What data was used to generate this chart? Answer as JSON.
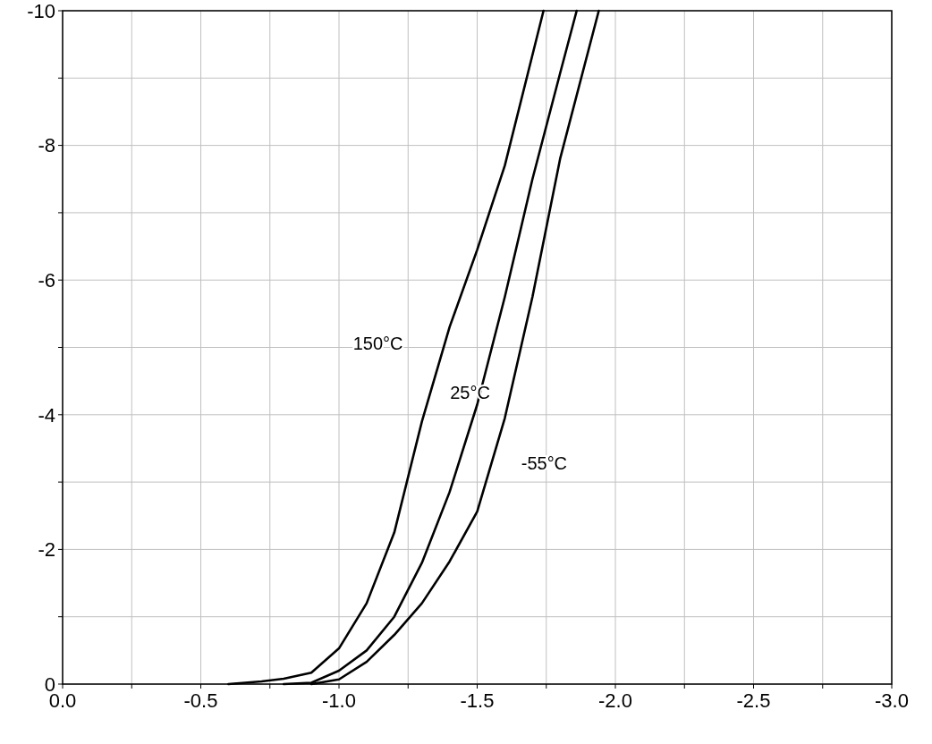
{
  "chart_data": {
    "type": "line",
    "xlim": [
      0,
      -3
    ],
    "ylim": [
      0,
      -10
    ],
    "xticks": [
      {
        "value": 0,
        "label": "0.0"
      },
      {
        "value": -0.25,
        "label": null
      },
      {
        "value": -0.5,
        "label": "-0.5"
      },
      {
        "value": -0.75,
        "label": null
      },
      {
        "value": -1,
        "label": "-1.0"
      },
      {
        "value": -1.25,
        "label": null
      },
      {
        "value": -1.5,
        "label": "-1.5"
      },
      {
        "value": -1.75,
        "label": null
      },
      {
        "value": -2,
        "label": "-2.0"
      },
      {
        "value": -2.25,
        "label": null
      },
      {
        "value": -2.5,
        "label": "-2.5"
      },
      {
        "value": -2.75,
        "label": null
      },
      {
        "value": -3,
        "label": "-3.0"
      }
    ],
    "yticks": [
      0,
      {
        "value": -1,
        "label": null
      },
      -2,
      {
        "value": -3,
        "label": null
      },
      -4,
      {
        "value": -5,
        "label": null
      },
      -6,
      {
        "value": -7,
        "label": null
      },
      -8,
      {
        "value": -9,
        "label": null
      },
      -10
    ],
    "grid": true,
    "marker": "none",
    "line_style": "solid",
    "series": [
      {
        "name": "150°C",
        "color": "#000000",
        "x": [
          -0.6,
          -0.72,
          -0.8,
          -0.9,
          -1.0,
          -1.1,
          -1.2,
          -1.3,
          -1.4,
          -1.5,
          -1.6,
          -1.74
        ],
        "values": [
          0,
          -0.04,
          -0.08,
          -0.17,
          -0.53,
          -1.2,
          -2.25,
          -3.9,
          -5.3,
          -6.45,
          -7.7,
          -10
        ]
      },
      {
        "name": "25°C",
        "color": "#000000",
        "x": [
          -0.8,
          -0.9,
          -1.0,
          -1.1,
          -1.2,
          -1.3,
          -1.4,
          -1.5,
          -1.6,
          -1.7,
          -1.8,
          -1.86
        ],
        "values": [
          0,
          -0.02,
          -0.2,
          -0.5,
          -1.0,
          -1.8,
          -2.85,
          -4.15,
          -5.75,
          -7.5,
          -9.07,
          -10
        ]
      },
      {
        "name": "-55°C",
        "color": "#000000",
        "x": [
          -0.9,
          -1.0,
          -1.1,
          -1.2,
          -1.3,
          -1.4,
          -1.5,
          -1.6,
          -1.7,
          -1.8,
          -1.94
        ],
        "values": [
          0,
          -0.07,
          -0.33,
          -0.73,
          -1.2,
          -1.82,
          -2.56,
          -3.95,
          -5.75,
          -7.8,
          -10
        ]
      }
    ]
  }
}
